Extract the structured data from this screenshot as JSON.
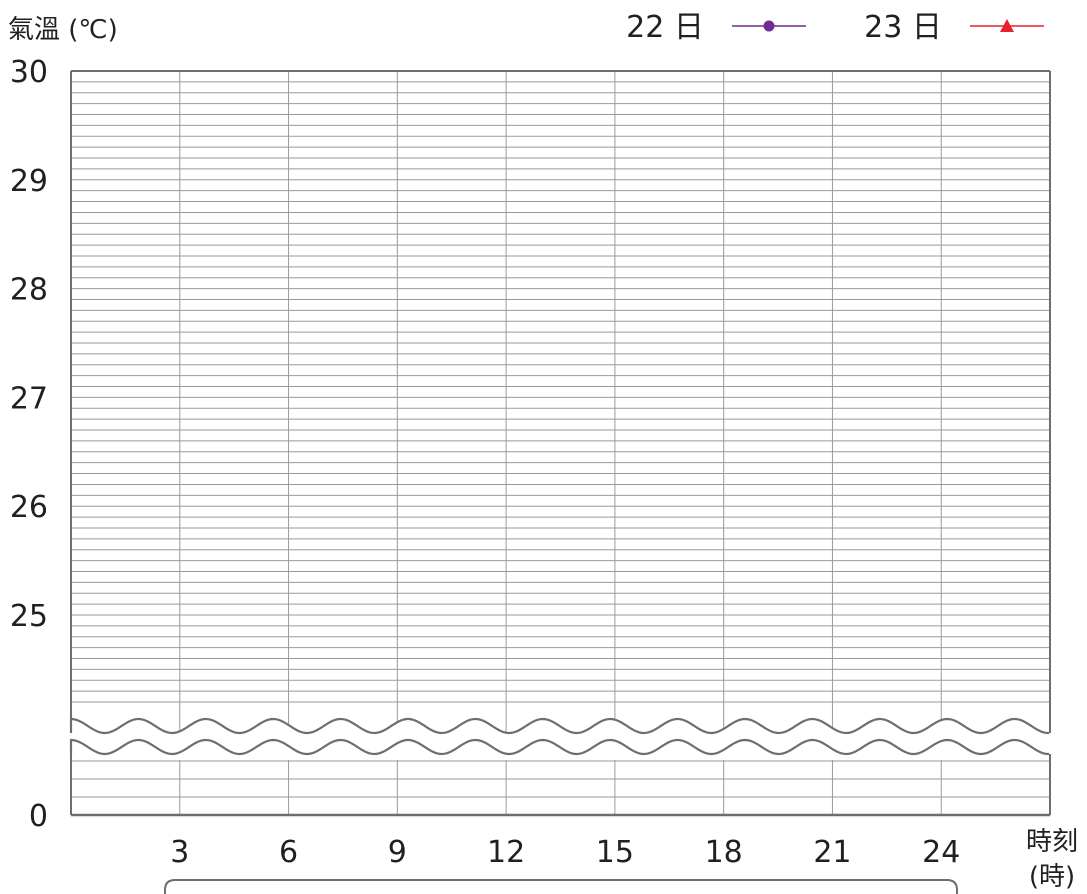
{
  "chart_data": {
    "type": "line",
    "ylabel": "氣溫 (℃)",
    "xlabel": "時刻",
    "xlabel_unit": "(時)",
    "y_ticks": [
      "30",
      "29",
      "28",
      "27",
      "26",
      "25",
      "0"
    ],
    "x_ticks": [
      "3",
      "6",
      "9",
      "12",
      "15",
      "18",
      "21",
      "24"
    ],
    "ylim": [
      25,
      30
    ],
    "y_axis_break": true,
    "grid": true,
    "legend_position": "top-right",
    "series": [
      {
        "name": "22 日",
        "color": "#6f2c91",
        "marker": "circle",
        "x": [],
        "y": []
      },
      {
        "name": "23 日",
        "color": "#e8222d",
        "marker": "triangle",
        "x": [],
        "y": []
      }
    ]
  },
  "colors": {
    "grid": "#9a9a9a",
    "frame": "#6d6e70",
    "text": "#231f20"
  }
}
